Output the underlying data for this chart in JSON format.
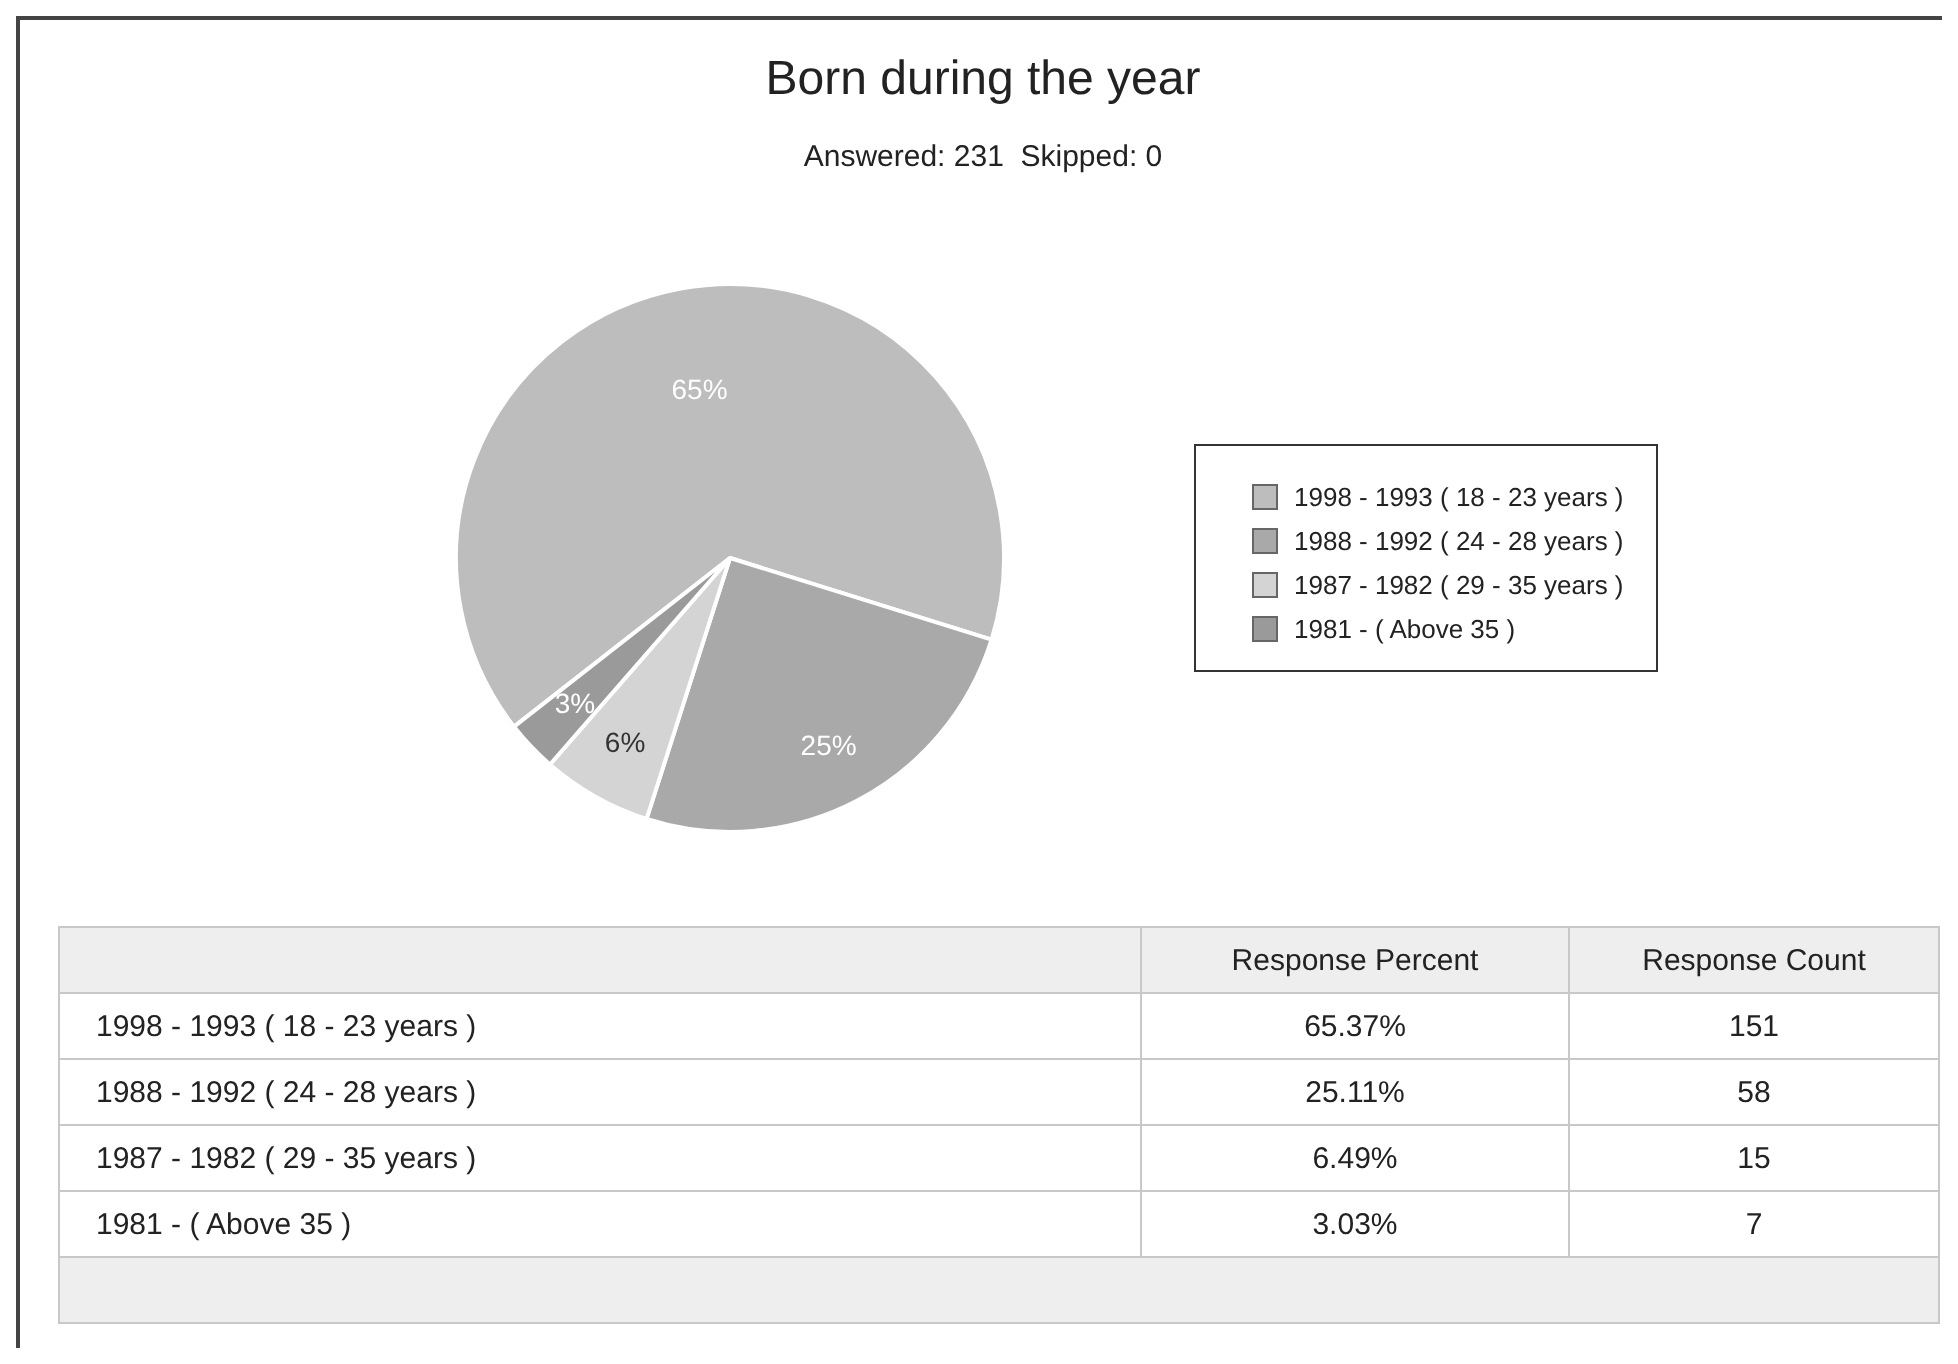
{
  "chart_data": {
    "type": "pie",
    "title": "Born during the year",
    "subtitle": "Answered: 231  Skipped: 0",
    "categories": [
      "1998 - 1993 ( 18 - 23 years )",
      "1988 - 1992 ( 24 - 28 years )",
      "1987 - 1982 ( 29 - 35 years )",
      "1981 - ( Above 35 )"
    ],
    "colors": [
      "#bdbdbd",
      "#a9a9a9",
      "#d4d4d4",
      "#9a9a9a"
    ],
    "values": [
      65.37,
      25.11,
      6.49,
      3.03
    ],
    "value_labels": [
      "65%",
      "25%",
      "6%",
      "3%"
    ],
    "annotations": [
      "Response Percent",
      "Response Count",
      {
        "text": "65.37%",
        "x": "1998 - 1993 ( 18 - 23 years )"
      },
      {
        "text": "25.11%",
        "x": "1988 - 1992 ( 24 - 28 years )"
      },
      {
        "text": "6.49%",
        "x": "1987 - 1982 ( 29 - 35 years )"
      },
      {
        "text": "3.03%",
        "x": "1981 - ( Above 35 )"
      },
      {
        "text": "151",
        "x": "1998 - 1993 ( 18 - 23 years )"
      },
      {
        "text": "58",
        "x": "1988 - 1992 ( 24 - 28 years )"
      },
      {
        "text": "15",
        "x": "1987 - 1982 ( 29 - 35 years )"
      },
      {
        "text": "7",
        "x": "1981 - ( Above 35 )"
      }
    ],
    "legend": "right"
  }
}
